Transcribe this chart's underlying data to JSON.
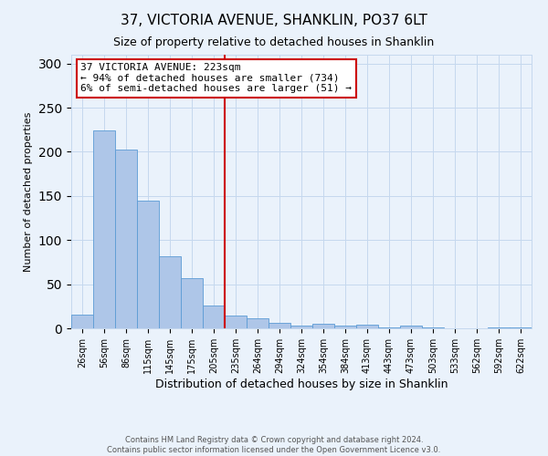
{
  "title": "37, VICTORIA AVENUE, SHANKLIN, PO37 6LT",
  "subtitle": "Size of property relative to detached houses in Shanklin",
  "xlabel": "Distribution of detached houses by size in Shanklin",
  "ylabel": "Number of detached properties",
  "footer_line1": "Contains HM Land Registry data © Crown copyright and database right 2024.",
  "footer_line2": "Contains public sector information licensed under the Open Government Licence v3.0.",
  "bar_labels": [
    "26sqm",
    "56sqm",
    "86sqm",
    "115sqm",
    "145sqm",
    "175sqm",
    "205sqm",
    "235sqm",
    "264sqm",
    "294sqm",
    "324sqm",
    "354sqm",
    "384sqm",
    "413sqm",
    "443sqm",
    "473sqm",
    "503sqm",
    "533sqm",
    "562sqm",
    "592sqm",
    "622sqm"
  ],
  "bar_heights": [
    16,
    224,
    203,
    145,
    82,
    57,
    26,
    14,
    11,
    6,
    3,
    5,
    3,
    4,
    1,
    3,
    1,
    0,
    0,
    1,
    1
  ],
  "bar_color": "#aec6e8",
  "bar_edge_color": "#5b9bd5",
  "vline_color": "#cc0000",
  "vline_pos": 6.5,
  "annotation_title": "37 VICTORIA AVENUE: 223sqm",
  "annotation_line1": "← 94% of detached houses are smaller (734)",
  "annotation_line2": "6% of semi-detached houses are larger (51) →",
  "annotation_box_color": "#ffffff",
  "annotation_box_edge": "#cc0000",
  "ylim": [
    0,
    310
  ],
  "bg_color": "#eaf2fb",
  "plot_bg_color": "#eaf2fb",
  "grid_color": "#c5d8ee"
}
